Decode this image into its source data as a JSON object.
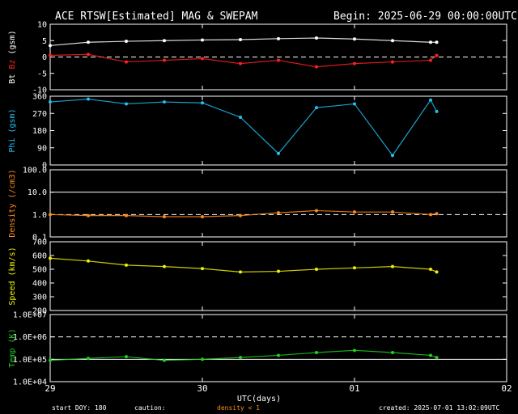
{
  "header": {
    "title": "ACE RTSW[Estimated] MAG & SWEPAM",
    "begin": "Begin: 2025-06-29 00:00:00UTC"
  },
  "footer": {
    "start_doy": "start DOY: 180",
    "caution": "caution:",
    "density_note": "density < 1",
    "created": "created: 2025-07-01 13:02:09UTC"
  },
  "colors": {
    "bt": "#ffffff",
    "bz": "#ff2020",
    "phi": "#20c0f0",
    "density": "#ff8c1a",
    "speed": "#f0f000",
    "temp": "#20d020",
    "frame": "#ffffff",
    "caution": "#ff8c1a"
  },
  "chart_data": [
    {
      "type": "line",
      "panel": "mag",
      "ylabel_parts": [
        "Bt",
        "Bz",
        "(gsm)"
      ],
      "ylim": [
        -10,
        10
      ],
      "yticks": [
        10,
        5,
        0,
        -5,
        -10
      ],
      "ytick_labels": [
        "10",
        "5",
        "0",
        "-5",
        "-10"
      ],
      "reference_lines": [
        {
          "y": 0,
          "style": "dashed"
        }
      ],
      "x_days": [
        0,
        0.25,
        0.5,
        0.75,
        1,
        1.25,
        1.5,
        1.75,
        2.0,
        2.25,
        2.5,
        2.54
      ],
      "series": [
        {
          "name": "Bt",
          "values": [
            3.5,
            4.5,
            4.8,
            5.0,
            5.2,
            5.3,
            5.6,
            5.8,
            5.5,
            5.0,
            4.5,
            4.5
          ]
        },
        {
          "name": "Bz",
          "values": [
            0.5,
            0.8,
            -1.5,
            -1.0,
            -0.5,
            -2.0,
            -1.0,
            -3.0,
            -2.0,
            -1.5,
            -1.0,
            0.5
          ]
        }
      ]
    },
    {
      "type": "scatter",
      "panel": "phi",
      "ylabel": "Phi (gsm)",
      "ylim": [
        0,
        360
      ],
      "yticks": [
        360,
        270,
        180,
        90,
        0
      ],
      "ytick_labels": [
        "360",
        "270",
        "180",
        "90",
        "0"
      ],
      "x_days": [
        0,
        0.25,
        0.5,
        0.75,
        1.0,
        1.25,
        1.5,
        1.75,
        2.0,
        2.25,
        2.5,
        2.54
      ],
      "series": [
        {
          "name": "Phi",
          "values": [
            330,
            345,
            320,
            330,
            325,
            250,
            60,
            300,
            320,
            50,
            340,
            280
          ]
        }
      ]
    },
    {
      "type": "scatter",
      "panel": "density",
      "ylabel": "Density (/cm3)",
      "yscale": "log",
      "ylim": [
        0.1,
        100
      ],
      "yticks": [
        100,
        10,
        1,
        0.1
      ],
      "ytick_labels": [
        "100.0",
        "10.0",
        "1.0",
        "0.1"
      ],
      "reference_lines": [
        {
          "y": 10,
          "style": "solid"
        },
        {
          "y": 1,
          "style": "dashed"
        }
      ],
      "x_days": [
        0,
        0.25,
        0.5,
        0.75,
        1.0,
        1.25,
        1.5,
        1.75,
        2.0,
        2.25,
        2.5,
        2.54
      ],
      "series": [
        {
          "name": "Density",
          "values": [
            1.0,
            0.9,
            0.9,
            0.8,
            0.8,
            0.9,
            1.2,
            1.5,
            1.3,
            1.3,
            1.0,
            1.1
          ]
        }
      ]
    },
    {
      "type": "scatter",
      "panel": "speed",
      "ylabel": "Speed (km/s)",
      "ylim": [
        200,
        700
      ],
      "yticks": [
        700,
        600,
        500,
        400,
        300,
        200
      ],
      "ytick_labels": [
        "700",
        "600",
        "500",
        "400",
        "300",
        "200"
      ],
      "x_days": [
        0,
        0.25,
        0.5,
        0.75,
        1.0,
        1.25,
        1.5,
        1.75,
        2.0,
        2.25,
        2.5,
        2.54
      ],
      "series": [
        {
          "name": "Speed",
          "values": [
            580,
            560,
            530,
            520,
            505,
            480,
            485,
            500,
            510,
            520,
            500,
            480
          ]
        }
      ]
    },
    {
      "type": "scatter",
      "panel": "temp",
      "ylabel": "Temp (K)",
      "yscale": "log",
      "ylim": [
        10000,
        10000000
      ],
      "yticks": [
        10000000,
        1000000,
        100000,
        10000
      ],
      "ytick_labels": [
        "1.0E+07",
        "1.0E+06",
        "1.0E+05",
        "1.0E+04"
      ],
      "reference_lines": [
        {
          "y": 1000000,
          "style": "dashed"
        },
        {
          "y": 100000,
          "style": "solid"
        }
      ],
      "x_days": [
        0,
        0.25,
        0.5,
        0.75,
        1.0,
        1.25,
        1.5,
        1.75,
        2.0,
        2.25,
        2.5,
        2.54
      ],
      "series": [
        {
          "name": "Temp",
          "values": [
            90000,
            110000,
            130000,
            90000,
            100000,
            120000,
            150000,
            200000,
            250000,
            200000,
            150000,
            120000
          ]
        }
      ]
    }
  ],
  "x_axis": {
    "label": "UTC(days)",
    "ticks": [
      0,
      1,
      2,
      3
    ],
    "tick_labels": [
      "29",
      "30",
      "01",
      "02"
    ],
    "range": [
      0,
      3
    ]
  }
}
